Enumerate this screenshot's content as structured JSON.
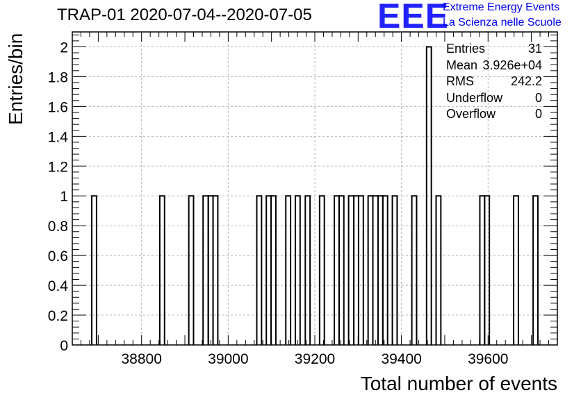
{
  "header": {
    "title": "TRAP-01 2020-07-04--2020-07-05",
    "logo_text": "EEE",
    "logo_line1": "Extreme Energy Events",
    "logo_line2": "La Scienza nelle Scuole"
  },
  "stats": [
    {
      "name": "Entries",
      "value": "31"
    },
    {
      "name": "Mean",
      "value": "3.926e+04"
    },
    {
      "name": "RMS",
      "value": "242.2"
    },
    {
      "name": "Underflow",
      "value": "0"
    },
    {
      "name": "Overflow",
      "value": "0"
    }
  ],
  "colors": {
    "line": "#000000",
    "grid": "#b4b4b4",
    "logo": "#2222ff",
    "logo_text": "#0000ee"
  },
  "chart_data": {
    "type": "histogram",
    "title": "TRAP-01 2020-07-04--2020-07-05",
    "xlabel": "Total number of events",
    "ylabel": "Entries/bin",
    "xlim": [
      38640,
      39760
    ],
    "ylim": [
      0,
      2.1
    ],
    "bin_width": 11.2,
    "x_ticks": [
      38800,
      39000,
      39200,
      39400,
      39600
    ],
    "x_tick_labels": [
      "38800",
      "39000",
      "39200",
      "39400",
      "39600"
    ],
    "y_ticks": [
      0,
      0.2,
      0.4,
      0.6,
      0.8,
      1,
      1.2,
      1.4,
      1.6,
      1.8,
      2
    ],
    "y_tick_labels": [
      "0",
      "0.2",
      "0.4",
      "0.6",
      "0.8",
      "1",
      "1.2",
      "1.4",
      "1.6",
      "1.8",
      "2"
    ],
    "grid": true,
    "bins": [
      {
        "low": 38685,
        "high": 38696,
        "count": 1
      },
      {
        "low": 38842,
        "high": 38853,
        "count": 1
      },
      {
        "low": 38909,
        "high": 38920,
        "count": 1
      },
      {
        "low": 38942,
        "high": 38954,
        "count": 1
      },
      {
        "low": 38954,
        "high": 38965,
        "count": 1
      },
      {
        "low": 38965,
        "high": 38976,
        "count": 1
      },
      {
        "low": 39066,
        "high": 39077,
        "count": 1
      },
      {
        "low": 39088,
        "high": 39099,
        "count": 1
      },
      {
        "low": 39099,
        "high": 39110,
        "count": 1
      },
      {
        "low": 39133,
        "high": 39144,
        "count": 1
      },
      {
        "low": 39155,
        "high": 39166,
        "count": 1
      },
      {
        "low": 39178,
        "high": 39189,
        "count": 1
      },
      {
        "low": 39211,
        "high": 39222,
        "count": 1
      },
      {
        "low": 39245,
        "high": 39256,
        "count": 1
      },
      {
        "low": 39256,
        "high": 39267,
        "count": 1
      },
      {
        "low": 39278,
        "high": 39290,
        "count": 1
      },
      {
        "low": 39290,
        "high": 39301,
        "count": 1
      },
      {
        "low": 39301,
        "high": 39312,
        "count": 1
      },
      {
        "low": 39323,
        "high": 39334,
        "count": 1
      },
      {
        "low": 39334,
        "high": 39346,
        "count": 1
      },
      {
        "low": 39346,
        "high": 39357,
        "count": 1
      },
      {
        "low": 39357,
        "high": 39368,
        "count": 1
      },
      {
        "low": 39379,
        "high": 39390,
        "count": 1
      },
      {
        "low": 39424,
        "high": 39435,
        "count": 1
      },
      {
        "low": 39458,
        "high": 39469,
        "count": 2
      },
      {
        "low": 39480,
        "high": 39491,
        "count": 1
      },
      {
        "low": 39581,
        "high": 39592,
        "count": 1
      },
      {
        "low": 39592,
        "high": 39603,
        "count": 1
      },
      {
        "low": 39659,
        "high": 39670,
        "count": 1
      },
      {
        "low": 39704,
        "high": 39715,
        "count": 1
      }
    ]
  }
}
